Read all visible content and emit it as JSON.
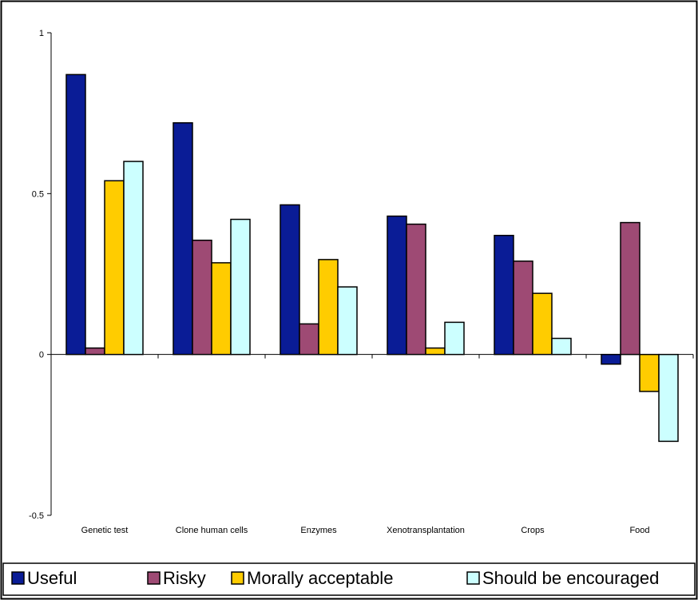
{
  "chart_data": {
    "type": "bar",
    "title": "",
    "xlabel": "",
    "ylabel": "",
    "categories": [
      "Genetic test",
      "Clone human cells",
      "Enzymes",
      "Xenotransplantation",
      "Crops",
      "Food"
    ],
    "series": [
      {
        "name": "Useful",
        "color": "#0a1c96",
        "values": [
          0.87,
          0.72,
          0.465,
          0.43,
          0.37,
          -0.03
        ]
      },
      {
        "name": "Risky",
        "color": "#9e4a74",
        "values": [
          0.02,
          0.355,
          0.095,
          0.405,
          0.29,
          0.41
        ]
      },
      {
        "name": "Morally acceptable",
        "color": "#ffcc00",
        "values": [
          0.54,
          0.285,
          0.295,
          0.02,
          0.19,
          -0.115
        ]
      },
      {
        "name": "Should be encouraged",
        "color": "#ccffff",
        "values": [
          0.6,
          0.42,
          0.21,
          0.1,
          0.05,
          -0.27
        ]
      }
    ],
    "ylim": [
      -0.5,
      1
    ],
    "yticks": [
      "-0.5",
      "0",
      "0.5",
      "1"
    ],
    "ytick_values": [
      -0.5,
      0,
      0.5,
      1
    ],
    "grid": false,
    "legend_position": "bottom"
  }
}
